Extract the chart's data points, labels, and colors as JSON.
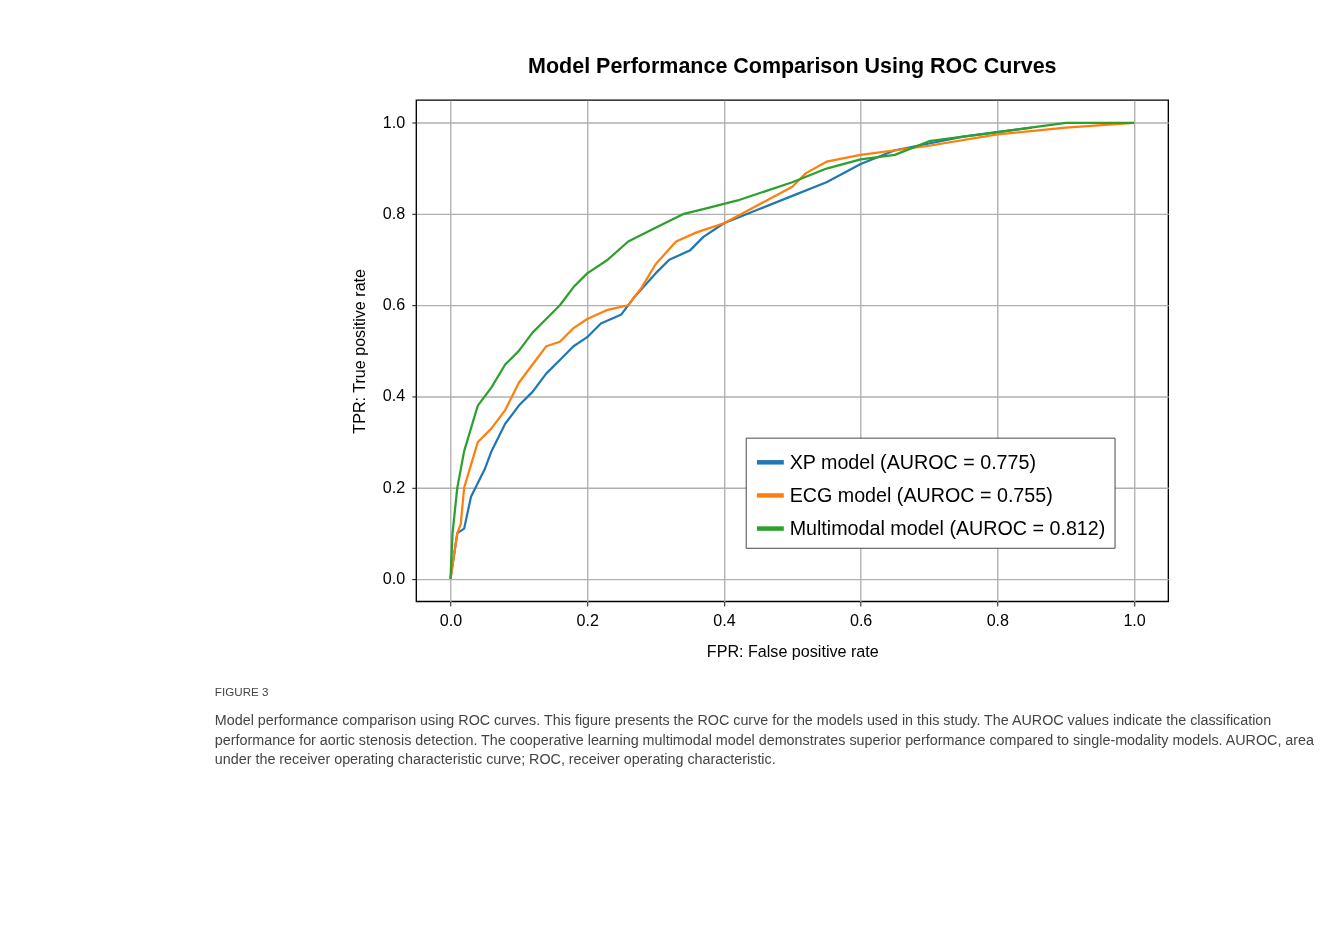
{
  "chart_data": {
    "type": "line",
    "title": "Model Performance Comparison Using ROC Curves",
    "xlabel": "FPR: False positive rate",
    "ylabel": "TPR: True positive rate",
    "xlim": [
      -0.05,
      1.05
    ],
    "ylim": [
      -0.05,
      1.05
    ],
    "xticks": [
      {
        "value": 0,
        "label": "0.0"
      },
      0.2,
      0.4,
      0.6,
      0.8,
      {
        "value": 1,
        "label": "1.0"
      }
    ],
    "yticks": [
      {
        "value": 0,
        "label": "0.0"
      },
      0.2,
      0.4,
      0.6,
      0.8,
      {
        "value": 1,
        "label": "1.0"
      }
    ],
    "grid": true,
    "legend": "bottom right",
    "line_style": "solid",
    "marker": "none",
    "series": [
      {
        "name": "XP model (AUROC = 0.775)",
        "color": "#1f77b4",
        "x": [
          0,
          0.005,
          0.01,
          0.02,
          0.03,
          0.04,
          0.05,
          0.06,
          0.07,
          0.08,
          0.1,
          0.12,
          0.14,
          0.16,
          0.18,
          0.2,
          0.22,
          0.25,
          0.27,
          0.3,
          0.32,
          0.35,
          0.37,
          0.4,
          0.45,
          0.5,
          0.55,
          0.6,
          0.65,
          0.7,
          0.75,
          0.8,
          0.85
        ],
        "values": [
          0,
          0.05,
          0.1,
          0.11,
          0.18,
          0.21,
          0.24,
          0.28,
          0.31,
          0.34,
          0.38,
          0.41,
          0.45,
          0.48,
          0.51,
          0.53,
          0.56,
          0.58,
          0.62,
          0.67,
          0.7,
          0.72,
          0.75,
          0.78,
          0.81,
          0.84,
          0.87,
          0.91,
          0.94,
          0.955,
          0.97,
          0.98,
          0.99
        ]
      },
      {
        "name": "ECG model (AUROC = 0.755)",
        "color": "#ff7f0e",
        "x": [
          0,
          0.005,
          0.01,
          0.015,
          0.02,
          0.03,
          0.04,
          0.06,
          0.08,
          0.1,
          0.12,
          0.14,
          0.16,
          0.18,
          0.2,
          0.23,
          0.26,
          0.28,
          0.3,
          0.33,
          0.36,
          0.4,
          0.45,
          0.5,
          0.52,
          0.55,
          0.6,
          0.7,
          0.8,
          0.9,
          1
        ],
        "values": [
          0,
          0.05,
          0.1,
          0.12,
          0.2,
          0.25,
          0.3,
          0.33,
          0.37,
          0.43,
          0.47,
          0.51,
          0.52,
          0.55,
          0.57,
          0.59,
          0.6,
          0.64,
          0.69,
          0.74,
          0.76,
          0.78,
          0.82,
          0.86,
          0.89,
          0.915,
          0.93,
          0.95,
          0.975,
          0.99,
          1
        ]
      },
      {
        "name": "Multimodal model (AUROC = 0.812)",
        "color": "#2ca02c",
        "x": [
          0,
          0.003,
          0.01,
          0.02,
          0.03,
          0.04,
          0.06,
          0.08,
          0.1,
          0.12,
          0.14,
          0.16,
          0.18,
          0.2,
          0.23,
          0.26,
          0.3,
          0.34,
          0.38,
          0.42,
          0.46,
          0.5,
          0.55,
          0.6,
          0.65,
          0.7,
          0.8,
          0.9,
          1
        ],
        "values": [
          0,
          0.1,
          0.2,
          0.28,
          0.33,
          0.38,
          0.42,
          0.47,
          0.5,
          0.54,
          0.57,
          0.6,
          0.64,
          0.67,
          0.7,
          0.74,
          0.77,
          0.8,
          0.815,
          0.83,
          0.85,
          0.87,
          0.9,
          0.92,
          0.93,
          0.96,
          0.98,
          1,
          1
        ]
      }
    ],
    "annotations": [
      "FIGURE 3",
      "Model performance comparison using ROC curves. This figure presents the ROC curve for the models used in this study. The AUROC values indicate the classification performance for aortic stenosis detection. The cooperative learning multimodal model demonstrates superior performance compared to single-modality models. AUROC, area under the receiver operating characteristic curve; ROC, receiver operating characteristic."
    ]
  }
}
